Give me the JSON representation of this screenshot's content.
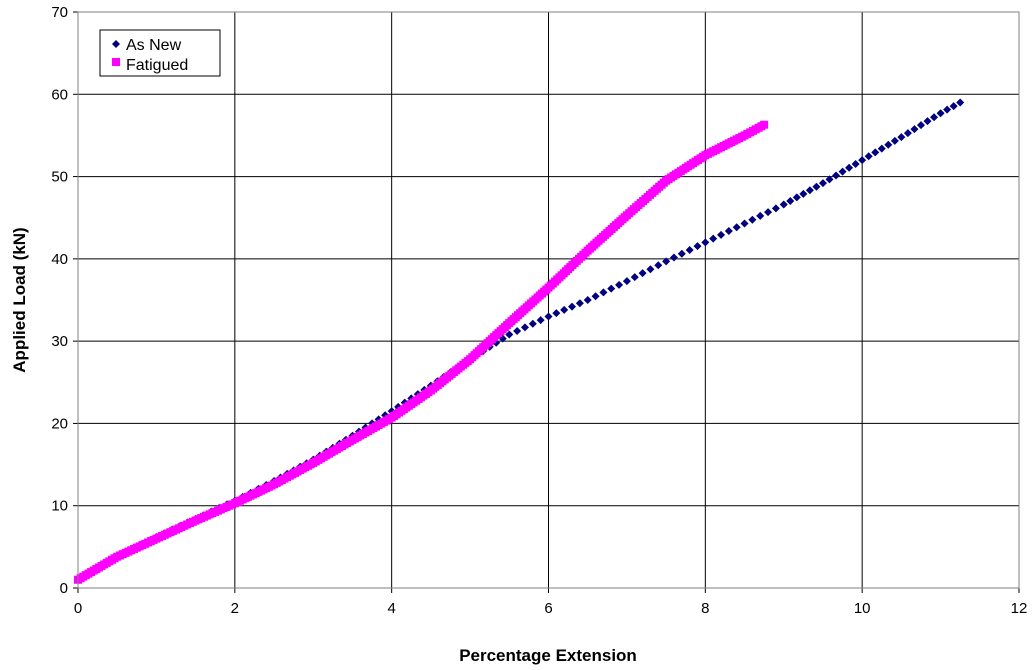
{
  "chart_data": {
    "type": "scatter",
    "title": "",
    "xlabel": "Percentage Extension",
    "ylabel": "Applied Load (kN)",
    "xlim": [
      0,
      12
    ],
    "ylim": [
      0,
      70
    ],
    "x_ticks": [
      0,
      2,
      4,
      6,
      8,
      10,
      12
    ],
    "y_ticks": [
      0,
      10,
      20,
      30,
      40,
      50,
      60,
      70
    ],
    "x_tick_labels": [
      "0",
      "2",
      "4",
      "6",
      "8",
      "10",
      "12"
    ],
    "y_tick_labels": [
      "0",
      "10",
      "20",
      "30",
      "40",
      "50",
      "60",
      "70"
    ],
    "grid": true,
    "legend_position": "top-left",
    "series": [
      {
        "name": "As New",
        "color": "#000080",
        "marker": "diamond",
        "points": [
          [
            0.0,
            1.0
          ],
          [
            0.5,
            3.8
          ],
          [
            1.0,
            6.2
          ],
          [
            1.5,
            8.4
          ],
          [
            2.0,
            10.6
          ],
          [
            2.5,
            13.0
          ],
          [
            3.0,
            15.6
          ],
          [
            3.5,
            18.5
          ],
          [
            4.0,
            21.5
          ],
          [
            4.5,
            24.6
          ],
          [
            5.0,
            27.8
          ],
          [
            5.5,
            30.8
          ],
          [
            6.0,
            33.0
          ],
          [
            6.5,
            35.0
          ],
          [
            7.0,
            37.3
          ],
          [
            7.5,
            39.7
          ],
          [
            8.0,
            42.0
          ],
          [
            8.5,
            44.3
          ],
          [
            9.0,
            46.6
          ],
          [
            9.5,
            49.2
          ],
          [
            10.0,
            52.0
          ],
          [
            10.5,
            54.8
          ],
          [
            11.0,
            57.7
          ],
          [
            11.25,
            59.0
          ]
        ]
      },
      {
        "name": "Fatigued",
        "color": "#FF00FF",
        "marker": "square",
        "points": [
          [
            0.0,
            1.0
          ],
          [
            0.5,
            3.8
          ],
          [
            1.0,
            6.0
          ],
          [
            1.5,
            8.2
          ],
          [
            2.0,
            10.3
          ],
          [
            2.5,
            12.6
          ],
          [
            3.0,
            15.2
          ],
          [
            3.5,
            18.0
          ],
          [
            4.0,
            20.7
          ],
          [
            4.5,
            24.0
          ],
          [
            5.0,
            27.8
          ],
          [
            5.5,
            32.2
          ],
          [
            6.0,
            36.5
          ],
          [
            6.5,
            41.0
          ],
          [
            7.0,
            45.3
          ],
          [
            7.5,
            49.5
          ],
          [
            8.0,
            52.6
          ],
          [
            8.5,
            55.0
          ],
          [
            8.75,
            56.3
          ]
        ]
      }
    ]
  }
}
